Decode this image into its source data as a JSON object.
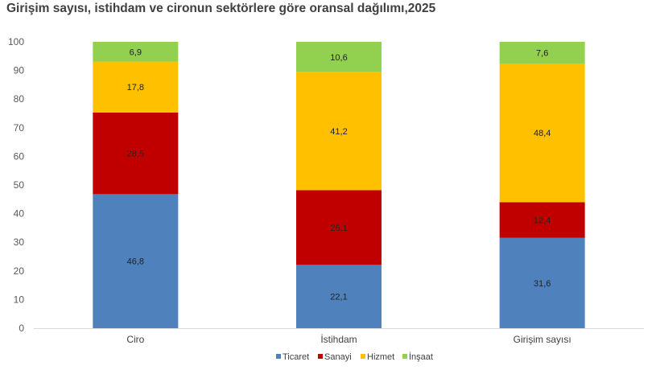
{
  "chart_data": {
    "type": "bar",
    "stacked": true,
    "title": "Girişim sayısı, istihdam ve cironun sektörlere göre oransal dağılımı,2025",
    "xlabel": "",
    "ylabel": "",
    "ylim": [
      0,
      100
    ],
    "yticks": [
      "0",
      "10",
      "20",
      "30",
      "40",
      "50",
      "60",
      "70",
      "80",
      "90",
      "100"
    ],
    "categories": [
      "Ciro",
      "İstihdam",
      "Girişim sayısı"
    ],
    "series": [
      {
        "name": "Ticaret",
        "color": "#4f81bd",
        "values": [
          46.8,
          22.1,
          31.6
        ],
        "labels": [
          "46,8",
          "22,1",
          "31,6"
        ]
      },
      {
        "name": "Sanayi",
        "color": "#c00000",
        "values": [
          28.5,
          26.1,
          12.4
        ],
        "labels": [
          "28,5",
          "26,1",
          "12,4"
        ]
      },
      {
        "name": "Hizmet",
        "color": "#ffc000",
        "values": [
          17.8,
          41.2,
          48.4
        ],
        "labels": [
          "17,8",
          "41,2",
          "48,4"
        ]
      },
      {
        "name": "İnşaat",
        "color": "#92d050",
        "values": [
          6.9,
          10.6,
          7.6
        ],
        "labels": [
          "6,9",
          "10,6",
          "7,6"
        ]
      }
    ],
    "grid": false,
    "legend": "bottom"
  }
}
